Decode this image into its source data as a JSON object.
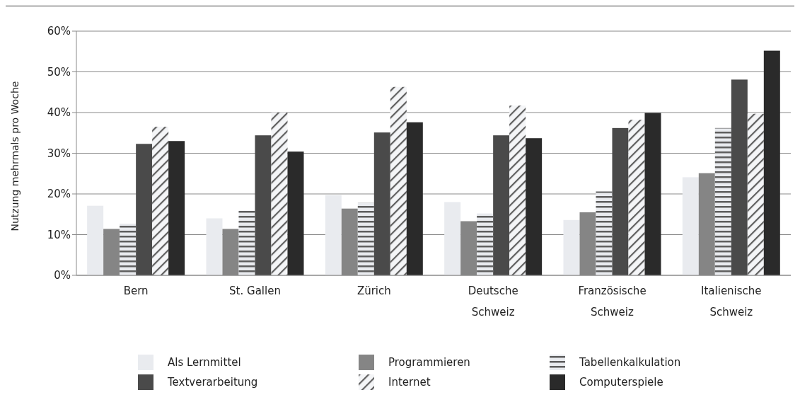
{
  "chart_data": {
    "type": "bar",
    "ylabel": "Nutzung mehrmals pro Woche",
    "categories": [
      "Bern",
      "St. Gallen",
      "Zürich",
      "Deutsche Schweiz",
      "Französische Schweiz",
      "Italienische Schweiz"
    ],
    "series": [
      {
        "name": "Als Lernmittel",
        "color": "#e9ebef",
        "values": [
          17.1,
          14.0,
          19.7,
          18.0,
          13.6,
          24.1
        ]
      },
      {
        "name": "Programmieren",
        "color": "#858585",
        "values": [
          11.4,
          11.4,
          16.4,
          13.3,
          15.5,
          25.1
        ]
      },
      {
        "name": "Tabellenkalkulation",
        "color": "#e9ebef",
        "values": [
          12.7,
          15.9,
          17.8,
          15.2,
          20.6,
          36.2
        ]
      },
      {
        "name": "Textverarbeitung",
        "color": "#4a4a4a",
        "values": [
          32.3,
          34.4,
          35.1,
          34.4,
          36.2,
          48.1
        ]
      },
      {
        "name": "Internet",
        "color": "#f4f5f7",
        "values": [
          36.5,
          40.0,
          46.3,
          41.7,
          38.2,
          39.7
        ]
      },
      {
        "name": "Computerspiele",
        "color": "#2a2a2a",
        "values": [
          33.0,
          30.4,
          37.6,
          33.7,
          39.9,
          55.2
        ]
      }
    ],
    "ylim": [
      0,
      60
    ],
    "yticks": [
      {
        "value": 0,
        "label": "0%"
      },
      {
        "value": 10,
        "label": "10%"
      },
      {
        "value": 20,
        "label": "20%"
      },
      {
        "value": 30,
        "label": "30%"
      },
      {
        "value": 40,
        "label": "40%"
      },
      {
        "value": 50,
        "label": "50%"
      },
      {
        "value": 60,
        "label": "60%"
      }
    ],
    "grid": "y",
    "legend": "bottom"
  }
}
